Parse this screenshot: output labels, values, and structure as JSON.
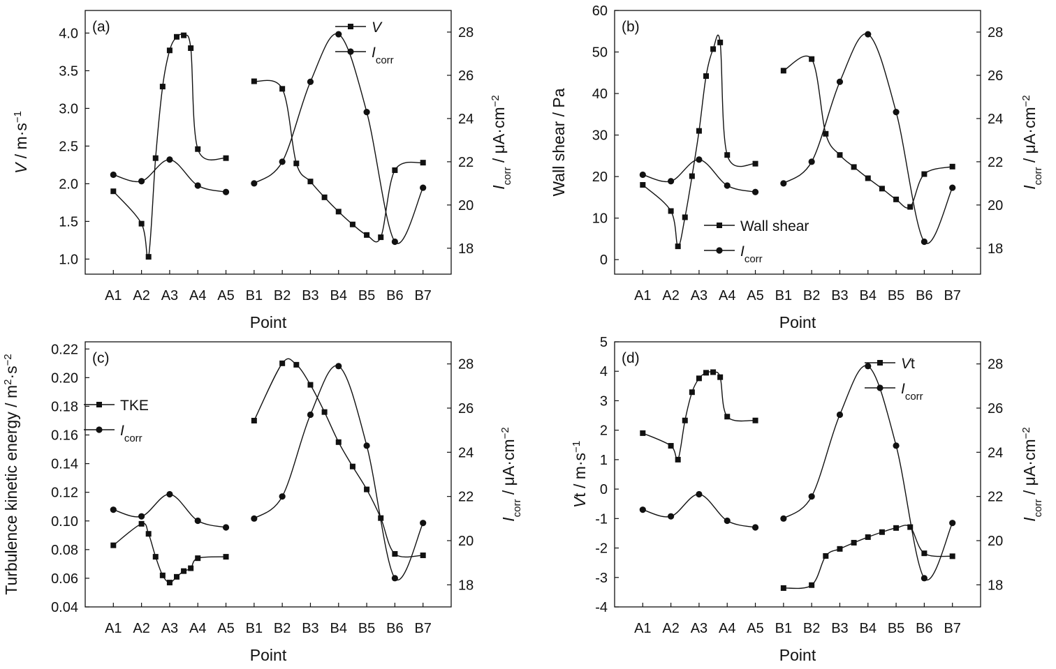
{
  "chart_data": [
    {
      "type": "line",
      "panel_label": "(a)",
      "xlabel": "Point",
      "ylabel": {
        "italic": "V",
        "rest": " / m·s",
        "sup": "−1"
      },
      "y2label": {
        "italic": "I",
        "sub": "corr",
        "rest": " / μA·cm",
        "sup": "−2"
      },
      "categories": [
        "A1",
        "A2",
        "A3",
        "A4",
        "A5",
        "B1",
        "B2",
        "B3",
        "B4",
        "B5",
        "B6",
        "B7"
      ],
      "ylim": [
        0.8,
        4.3
      ],
      "yticks": [
        1.0,
        1.5,
        2.0,
        2.5,
        3.0,
        3.5,
        4.0
      ],
      "ytick_labels": [
        "1.0",
        "1.5",
        "2.0",
        "2.5",
        "3.0",
        "3.5",
        "4.0"
      ],
      "y2lim": [
        16.8,
        29
      ],
      "y2ticks": [
        18,
        20,
        22,
        24,
        26,
        28
      ],
      "y2tick_labels": [
        "18",
        "20",
        "22",
        "24",
        "26",
        "28"
      ],
      "legend_position": "top-right",
      "series": [
        {
          "name": "V",
          "name_sub": "",
          "name_italic": true,
          "marker": "square",
          "axis": "left",
          "segments": [
            [
              [
                1,
                1.9
              ],
              [
                2,
                1.47
              ],
              [
                2.25,
                1.03
              ],
              [
                2.5,
                2.34
              ],
              [
                2.75,
                3.29
              ],
              [
                3,
                3.77
              ],
              [
                3.25,
                3.95
              ],
              [
                3.5,
                3.97
              ],
              [
                3.75,
                3.8
              ],
              [
                4,
                2.46
              ],
              [
                5,
                2.34
              ]
            ],
            [
              [
                6,
                3.36
              ],
              [
                7,
                3.26
              ],
              [
                7.5,
                2.27
              ],
              [
                8,
                2.03
              ],
              [
                8.5,
                1.82
              ],
              [
                9,
                1.63
              ],
              [
                9.5,
                1.46
              ],
              [
                10,
                1.32
              ],
              [
                10.5,
                1.29
              ],
              [
                11,
                2.18
              ],
              [
                12,
                2.28
              ]
            ]
          ]
        },
        {
          "name": "I",
          "name_sub": "corr",
          "name_italic": true,
          "marker": "circle",
          "axis": "right",
          "segments": [
            [
              [
                1,
                21.4
              ],
              [
                2,
                21.1
              ],
              [
                3,
                22.1
              ],
              [
                4,
                20.9
              ],
              [
                5,
                20.6
              ]
            ],
            [
              [
                6,
                21.0
              ],
              [
                7,
                22.0
              ],
              [
                8,
                25.7
              ],
              [
                9,
                27.9
              ],
              [
                10,
                24.3
              ],
              [
                11,
                18.3
              ],
              [
                12,
                20.8
              ]
            ]
          ]
        }
      ]
    },
    {
      "type": "line",
      "panel_label": "(b)",
      "xlabel": "Point",
      "ylabel": {
        "italic": "",
        "rest": "Wall shear / Pa",
        "sup": ""
      },
      "y2label": {
        "italic": "I",
        "sub": "corr",
        "rest": " / μA·cm",
        "sup": "−2"
      },
      "categories": [
        "A1",
        "A2",
        "A3",
        "A4",
        "A5",
        "B1",
        "B2",
        "B3",
        "B4",
        "B5",
        "B6",
        "B7"
      ],
      "ylim": [
        -3.5,
        60
      ],
      "yticks": [
        0,
        10,
        20,
        30,
        40,
        50,
        60
      ],
      "ytick_labels": [
        "0",
        "10",
        "20",
        "30",
        "40",
        "50",
        "60"
      ],
      "y2lim": [
        16.8,
        29
      ],
      "y2ticks": [
        18,
        20,
        22,
        24,
        26,
        28
      ],
      "y2tick_labels": [
        "18",
        "20",
        "22",
        "24",
        "26",
        "28"
      ],
      "legend_position": "lower-center",
      "series": [
        {
          "name": "Wall shear",
          "name_sub": "",
          "name_italic": false,
          "marker": "square",
          "axis": "left",
          "segments": [
            [
              [
                1,
                18
              ],
              [
                2,
                11.7
              ],
              [
                2.25,
                3.2
              ],
              [
                2.5,
                10.2
              ],
              [
                2.75,
                20.1
              ],
              [
                3,
                31
              ],
              [
                3.25,
                44.2
              ],
              [
                3.5,
                50.7
              ],
              [
                3.75,
                52.3
              ],
              [
                4,
                25.2
              ],
              [
                5,
                23.1
              ]
            ],
            [
              [
                6,
                45.5
              ],
              [
                7,
                48.3
              ],
              [
                7.5,
                30.3
              ],
              [
                8,
                25.2
              ],
              [
                8.5,
                22.3
              ],
              [
                9,
                19.6
              ],
              [
                9.5,
                17.1
              ],
              [
                10,
                14.5
              ],
              [
                10.5,
                12.7
              ],
              [
                11,
                20.6
              ],
              [
                12,
                22.4
              ]
            ]
          ]
        },
        {
          "name": "I",
          "name_sub": "corr",
          "name_italic": true,
          "marker": "circle",
          "axis": "right",
          "segments": [
            [
              [
                1,
                21.4
              ],
              [
                2,
                21.1
              ],
              [
                3,
                22.1
              ],
              [
                4,
                20.9
              ],
              [
                5,
                20.6
              ]
            ],
            [
              [
                6,
                21.0
              ],
              [
                7,
                22.0
              ],
              [
                8,
                25.7
              ],
              [
                9,
                27.9
              ],
              [
                10,
                24.3
              ],
              [
                11,
                18.3
              ],
              [
                12,
                20.8
              ]
            ]
          ]
        }
      ]
    },
    {
      "type": "line",
      "panel_label": "(c)",
      "xlabel": "Point",
      "ylabel": {
        "italic": "",
        "rest": "Turbulence kinetic energy / m",
        "sup": "2",
        "rest2": "·s",
        "sup2": "−2"
      },
      "y2label": {
        "italic": "I",
        "sub": "corr",
        "rest": " / μA·cm",
        "sup": "−2"
      },
      "categories": [
        "A1",
        "A2",
        "A3",
        "A4",
        "A5",
        "B1",
        "B2",
        "B3",
        "B4",
        "B5",
        "B6",
        "B7"
      ],
      "ylim": [
        0.04,
        0.225
      ],
      "yticks": [
        0.04,
        0.06,
        0.08,
        0.1,
        0.12,
        0.14,
        0.16,
        0.18,
        0.2,
        0.22
      ],
      "ytick_labels": [
        "0.04",
        "0.06",
        "0.08",
        "0.10",
        "0.12",
        "0.14",
        "0.16",
        "0.18",
        "0.20",
        "0.22"
      ],
      "y2lim": [
        17,
        29
      ],
      "y2ticks": [
        18,
        20,
        22,
        24,
        26,
        28
      ],
      "y2tick_labels": [
        "18",
        "20",
        "22",
        "24",
        "26",
        "28"
      ],
      "legend_position": "upper-left",
      "series": [
        {
          "name": "TKE",
          "name_sub": "",
          "name_italic": false,
          "marker": "square",
          "axis": "left",
          "segments": [
            [
              [
                1,
                0.083
              ],
              [
                2,
                0.098
              ],
              [
                2.25,
                0.091
              ],
              [
                2.5,
                0.075
              ],
              [
                2.75,
                0.062
              ],
              [
                3,
                0.057
              ],
              [
                3.25,
                0.061
              ],
              [
                3.5,
                0.065
              ],
              [
                3.75,
                0.067
              ],
              [
                4,
                0.074
              ],
              [
                5,
                0.075
              ]
            ],
            [
              [
                6,
                0.17
              ],
              [
                7,
                0.21
              ],
              [
                7.5,
                0.209
              ],
              [
                8,
                0.195
              ],
              [
                8.5,
                0.176
              ],
              [
                9,
                0.155
              ],
              [
                9.5,
                0.138
              ],
              [
                10,
                0.122
              ],
              [
                10.5,
                0.102
              ],
              [
                11,
                0.077
              ],
              [
                12,
                0.076
              ]
            ]
          ]
        },
        {
          "name": "I",
          "name_sub": "corr",
          "name_italic": true,
          "marker": "circle",
          "axis": "right",
          "segments": [
            [
              [
                1,
                21.4
              ],
              [
                2,
                21.1
              ],
              [
                3,
                22.1
              ],
              [
                4,
                20.9
              ],
              [
                5,
                20.6
              ]
            ],
            [
              [
                6,
                21.0
              ],
              [
                7,
                22.0
              ],
              [
                8,
                25.7
              ],
              [
                9,
                27.9
              ],
              [
                10,
                24.3
              ],
              [
                11,
                18.3
              ],
              [
                12,
                20.8
              ]
            ]
          ]
        }
      ]
    },
    {
      "type": "line",
      "panel_label": "(d)",
      "xlabel": "Point",
      "ylabel": {
        "italic": "V",
        "rest": "t / m·s",
        "sup": "−1"
      },
      "y2label": {
        "italic": "I",
        "sub": "corr",
        "rest": " / μA·cm",
        "sup": "−2"
      },
      "categories": [
        "A1",
        "A2",
        "A3",
        "A4",
        "A5",
        "B1",
        "B2",
        "B3",
        "B4",
        "B5",
        "B6",
        "B7"
      ],
      "ylim": [
        -4,
        5
      ],
      "yticks": [
        -4,
        -3,
        -2,
        -1,
        0,
        1,
        2,
        3,
        4,
        5
      ],
      "ytick_labels": [
        "-4",
        "-3",
        "-2",
        "-1",
        "0",
        "1",
        "2",
        "3",
        "4",
        "5"
      ],
      "y2lim": [
        17,
        29
      ],
      "y2ticks": [
        18,
        20,
        22,
        24,
        26,
        28
      ],
      "y2tick_labels": [
        "18",
        "20",
        "22",
        "24",
        "26",
        "28"
      ],
      "legend_position": "top-right",
      "series": [
        {
          "name": "V",
          "name_sub": "",
          "name_suffix": "t",
          "name_italic": true,
          "marker": "square",
          "axis": "left",
          "segments": [
            [
              [
                1,
                1.9
              ],
              [
                2,
                1.47
              ],
              [
                2.25,
                1.0
              ],
              [
                2.5,
                2.33
              ],
              [
                2.75,
                3.29
              ],
              [
                3,
                3.76
              ],
              [
                3.25,
                3.95
              ],
              [
                3.5,
                3.97
              ],
              [
                3.75,
                3.8
              ],
              [
                4,
                2.46
              ],
              [
                5,
                2.33
              ]
            ],
            [
              [
                6,
                -3.36
              ],
              [
                7,
                -3.26
              ],
              [
                7.5,
                -2.27
              ],
              [
                8,
                -2.03
              ],
              [
                8.5,
                -1.82
              ],
              [
                9,
                -1.63
              ],
              [
                9.5,
                -1.46
              ],
              [
                10,
                -1.32
              ],
              [
                10.5,
                -1.29
              ],
              [
                11,
                -2.18
              ],
              [
                12,
                -2.28
              ]
            ]
          ]
        },
        {
          "name": "I",
          "name_sub": "corr",
          "name_italic": true,
          "marker": "circle",
          "axis": "right",
          "segments": [
            [
              [
                1,
                21.4
              ],
              [
                2,
                21.1
              ],
              [
                3,
                22.1
              ],
              [
                4,
                20.9
              ],
              [
                5,
                20.6
              ]
            ],
            [
              [
                6,
                21.0
              ],
              [
                7,
                22.0
              ],
              [
                8,
                25.7
              ],
              [
                9,
                27.9
              ],
              [
                10,
                24.3
              ],
              [
                11,
                18.3
              ],
              [
                12,
                20.8
              ]
            ]
          ]
        }
      ]
    }
  ]
}
